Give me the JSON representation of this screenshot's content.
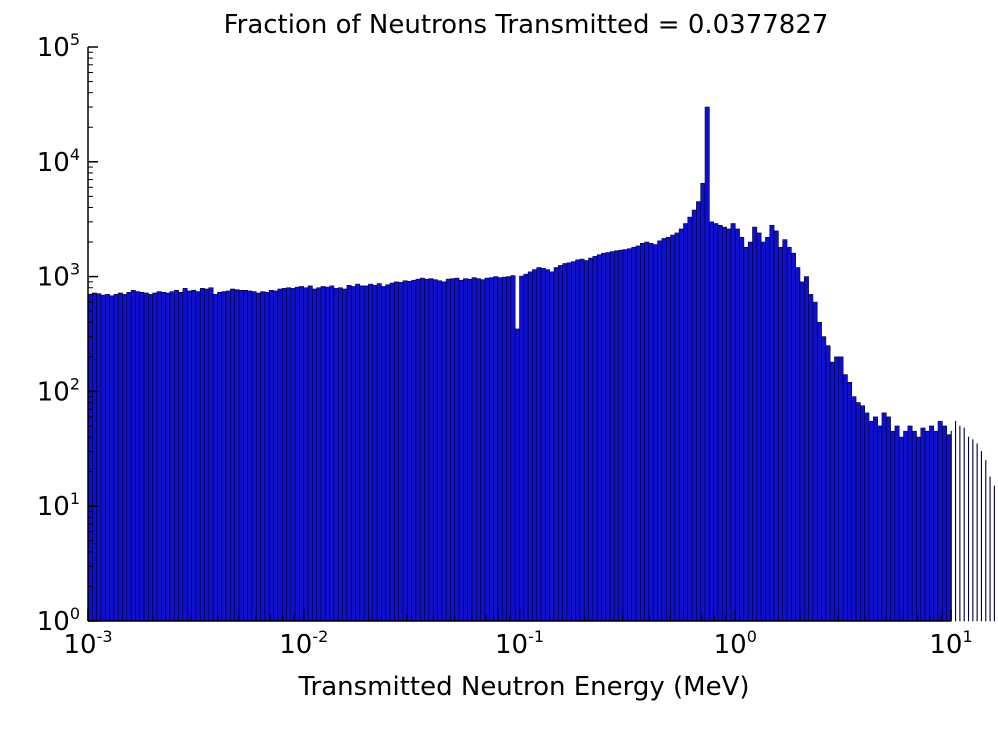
{
  "chart_data": {
    "type": "bar",
    "title": "Fraction of Neutrons Transmitted = 0.0377827",
    "xlabel": "Transmitted Neutron Energy (MeV)",
    "ylabel": "",
    "x_scale": "log",
    "y_scale": "log",
    "xlim": [
      0.001,
      10
    ],
    "ylim": [
      1,
      100000
    ],
    "grid": false,
    "bar_color": "#1010cc",
    "bar_edge_color": "#000033",
    "x_ticks": [
      {
        "value": 0.001,
        "base": "10",
        "exp": "-3"
      },
      {
        "value": 0.01,
        "base": "10",
        "exp": "-2"
      },
      {
        "value": 0.1,
        "base": "10",
        "exp": "-1"
      },
      {
        "value": 1,
        "base": "10",
        "exp": "0"
      },
      {
        "value": 10,
        "base": "10",
        "exp": "1"
      }
    ],
    "y_ticks": [
      {
        "value": 1,
        "base": "10",
        "exp": "0"
      },
      {
        "value": 10,
        "base": "10",
        "exp": "1"
      },
      {
        "value": 100,
        "base": "10",
        "exp": "2"
      },
      {
        "value": 1000,
        "base": "10",
        "exp": "3"
      },
      {
        "value": 10000,
        "base": "10",
        "exp": "4"
      },
      {
        "value": 100000,
        "base": "10",
        "exp": "5"
      }
    ],
    "bins_per_decade": 50,
    "values": [
      700,
      720,
      710,
      690,
      700,
      680,
      700,
      720,
      700,
      730,
      760,
      740,
      730,
      720,
      700,
      720,
      740,
      730,
      720,
      740,
      760,
      730,
      790,
      750,
      760,
      740,
      790,
      780,
      800,
      700,
      730,
      740,
      750,
      780,
      770,
      760,
      760,
      750,
      740,
      720,
      740,
      730,
      760,
      750,
      780,
      790,
      800,
      790,
      810,
      820,
      800,
      830,
      780,
      800,
      820,
      810,
      830,
      790,
      800,
      780,
      840,
      820,
      860,
      830,
      830,
      860,
      840,
      870,
      820,
      850,
      880,
      900,
      890,
      920,
      910,
      930,
      950,
      970,
      950,
      960,
      940,
      920,
      900,
      950,
      960,
      970,
      930,
      960,
      950,
      980,
      960,
      940,
      970,
      980,
      1000,
      980,
      990,
      1000,
      1020,
      350,
      1010,
      1050,
      1100,
      1150,
      1200,
      1180,
      1150,
      1100,
      1200,
      1250,
      1300,
      1320,
      1350,
      1400,
      1420,
      1380,
      1450,
      1500,
      1550,
      1600,
      1620,
      1650,
      1680,
      1700,
      1720,
      1750,
      1800,
      1850,
      1950,
      2000,
      1950,
      1900,
      2050,
      2150,
      2200,
      2300,
      2400,
      2600,
      2900,
      3300,
      3800,
      4500,
      6500,
      30000,
      3000,
      2900,
      2800,
      2700,
      2600,
      2900,
      2600,
      2200,
      1800,
      2000,
      2700,
      2400,
      2000,
      2200,
      2800,
      2500,
      1800,
      2100,
      1800,
      1600,
      1200,
      900,
      1000,
      700,
      600,
      400,
      300,
      250,
      180,
      200,
      200,
      140,
      120,
      90,
      80,
      75,
      65,
      55,
      60,
      50,
      65,
      60,
      45,
      50,
      40,
      45,
      50,
      45,
      40,
      48,
      45,
      50,
      45,
      55,
      50,
      42,
      45,
      55,
      50,
      48,
      40,
      38,
      35,
      30,
      25,
      18,
      15,
      12,
      8,
      6
    ]
  }
}
